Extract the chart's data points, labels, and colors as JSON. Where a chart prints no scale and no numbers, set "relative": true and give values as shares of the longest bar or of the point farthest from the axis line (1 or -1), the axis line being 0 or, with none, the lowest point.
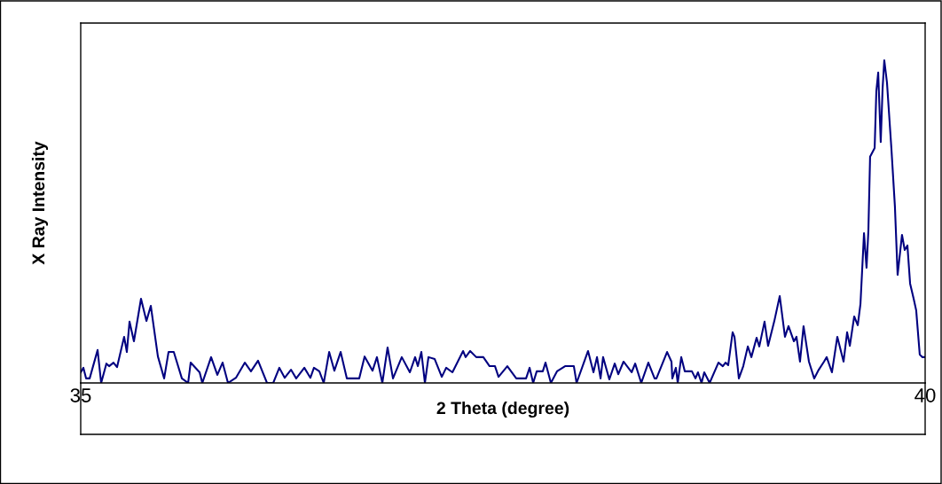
{
  "chart_data": {
    "type": "line",
    "relative": true,
    "xlabel": "2 Theta (degree)",
    "ylabel": "X Ray Intensity",
    "xlim": [
      35,
      40
    ],
    "xticks": [
      35,
      40
    ],
    "series": [
      {
        "color": "#000080",
        "x": [
          35.0,
          35.016,
          35.032,
          35.053,
          35.1,
          35.121,
          35.152,
          35.168,
          35.194,
          35.215,
          35.257,
          35.273,
          35.289,
          35.315,
          35.357,
          35.389,
          35.415,
          35.457,
          35.494,
          35.52,
          35.551,
          35.599,
          35.636,
          35.651,
          35.704,
          35.72,
          35.772,
          35.809,
          35.84,
          35.872,
          35.919,
          35.972,
          36.008,
          36.05,
          36.103,
          36.14,
          36.176,
          36.208,
          36.245,
          36.276,
          36.324,
          36.36,
          36.381,
          36.413,
          36.439,
          36.471,
          36.502,
          36.539,
          36.576,
          36.649,
          36.681,
          36.728,
          36.754,
          36.786,
          36.817,
          36.849,
          36.901,
          36.949,
          36.98,
          36.996,
          37.017,
          37.038,
          37.059,
          37.096,
          37.138,
          37.164,
          37.201,
          37.264,
          37.279,
          37.306,
          37.342,
          37.384,
          37.421,
          37.453,
          37.474,
          37.526,
          37.579,
          37.637,
          37.658,
          37.679,
          37.7,
          37.736,
          37.752,
          37.784,
          37.82,
          37.868,
          37.92,
          37.936,
          38.004,
          38.036,
          38.057,
          38.078,
          38.093,
          38.13,
          38.162,
          38.183,
          38.214,
          38.262,
          38.283,
          38.319,
          38.361,
          38.398,
          38.409,
          38.472,
          38.498,
          38.503,
          38.524,
          38.535,
          38.556,
          38.577,
          38.619,
          38.64,
          38.655,
          38.676,
          38.692,
          38.724,
          38.776,
          38.802,
          38.818,
          38.834,
          38.86,
          38.871,
          38.897,
          38.923,
          38.95,
          38.971,
          39.002,
          39.018,
          39.049,
          39.07,
          39.107,
          39.139,
          39.17,
          39.191,
          39.223,
          39.238,
          39.259,
          39.28,
          39.312,
          39.343,
          39.37,
          39.401,
          39.417,
          39.448,
          39.48,
          39.517,
          39.538,
          39.554,
          39.58,
          39.601,
          39.617,
          39.638,
          39.653,
          39.664,
          39.674,
          39.701,
          39.711,
          39.722,
          39.737,
          39.748,
          39.758,
          39.774,
          39.8,
          39.821,
          39.837,
          39.863,
          39.879,
          39.895,
          39.911,
          39.932,
          39.947,
          39.968,
          39.984,
          40.0
        ],
        "values": [
          0.033,
          0.047,
          0.014,
          0.014,
          0.102,
          0,
          0.06,
          0.052,
          0.063,
          0.049,
          0.143,
          0.096,
          0.19,
          0.129,
          0.261,
          0.192,
          0.239,
          0.082,
          0.014,
          0.096,
          0.096,
          0.014,
          0,
          0.063,
          0.033,
          0,
          0.08,
          0.025,
          0.063,
          0,
          0.016,
          0.063,
          0.036,
          0.069,
          0,
          0,
          0.047,
          0.016,
          0.041,
          0.014,
          0.047,
          0.016,
          0.047,
          0.036,
          0,
          0.096,
          0.038,
          0.096,
          0.014,
          0.014,
          0.082,
          0.038,
          0.08,
          0,
          0.11,
          0.014,
          0.08,
          0.033,
          0.08,
          0.052,
          0.096,
          0,
          0.08,
          0.074,
          0.019,
          0.047,
          0.033,
          0.099,
          0.08,
          0.099,
          0.08,
          0.08,
          0.052,
          0.052,
          0.019,
          0.052,
          0.014,
          0.014,
          0.047,
          0,
          0.036,
          0.036,
          0.063,
          0,
          0.036,
          0.052,
          0.052,
          0,
          0.099,
          0.033,
          0.08,
          0.014,
          0.08,
          0.011,
          0.06,
          0.027,
          0.066,
          0.033,
          0.06,
          0,
          0.063,
          0.014,
          0.014,
          0.096,
          0.066,
          0.014,
          0.047,
          0,
          0.08,
          0.036,
          0.036,
          0.014,
          0.033,
          0,
          0.033,
          0,
          0.063,
          0.052,
          0.063,
          0.055,
          0.157,
          0.143,
          0.014,
          0.052,
          0.113,
          0.08,
          0.14,
          0.113,
          0.19,
          0.115,
          0.192,
          0.269,
          0.143,
          0.176,
          0.129,
          0.143,
          0.066,
          0.176,
          0.066,
          0.014,
          0.041,
          0.066,
          0.08,
          0.033,
          0.143,
          0.066,
          0.157,
          0.115,
          0.206,
          0.179,
          0.245,
          0.464,
          0.357,
          0.473,
          0.701,
          0.728,
          0.904,
          0.962,
          0.747,
          0.912,
          1,
          0.931,
          0.728,
          0.547,
          0.335,
          0.459,
          0.412,
          0.426,
          0.308,
          0.261,
          0.225,
          0.088,
          0.08,
          0.08
        ]
      }
    ]
  }
}
